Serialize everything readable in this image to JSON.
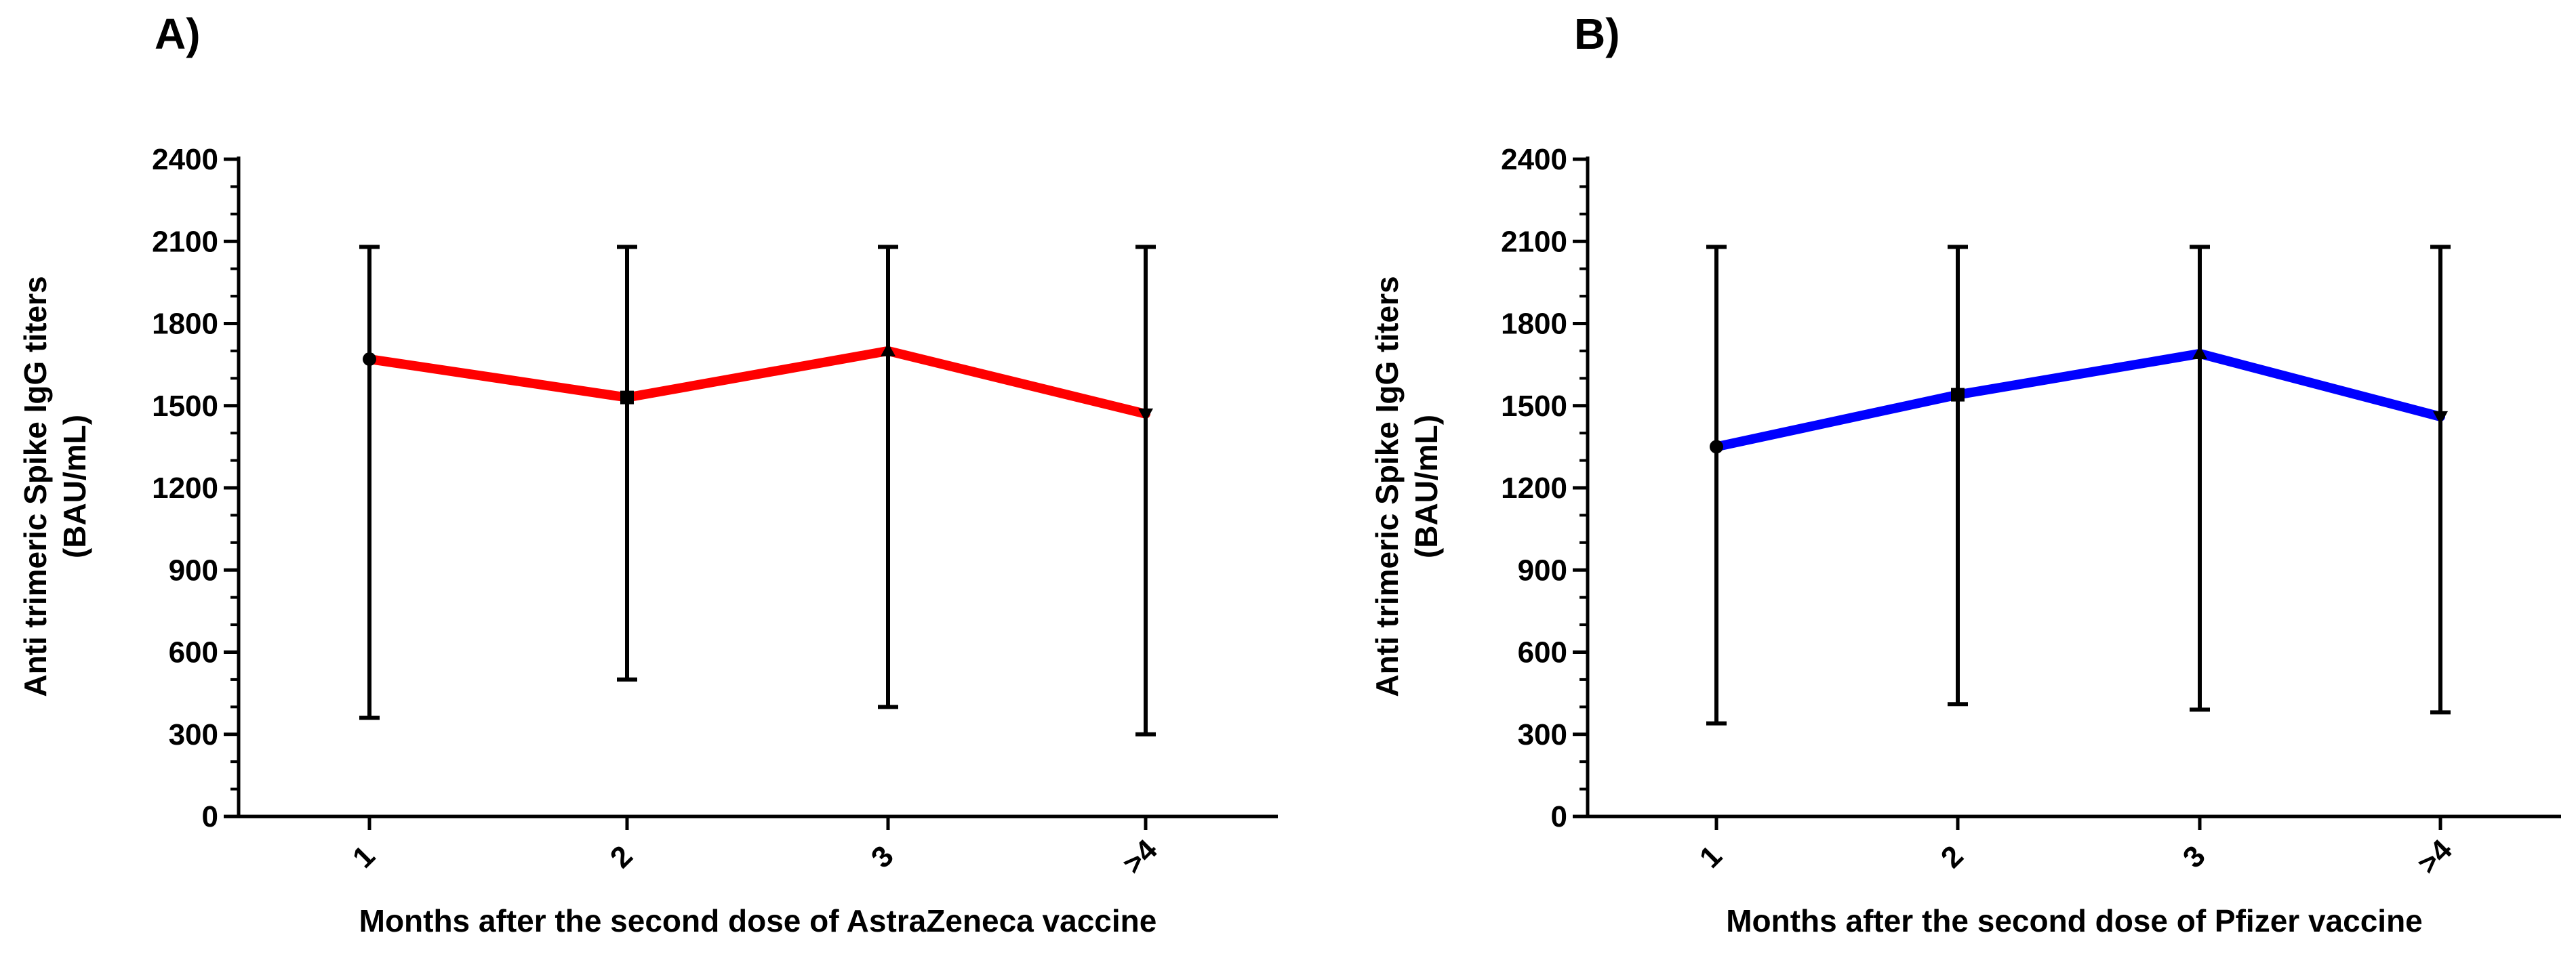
{
  "chart_data": [
    {
      "panel": "A)",
      "type": "line",
      "title": "",
      "xlabel": "Months after the second dose of AstraZeneca vaccine",
      "ylabel_line1": "Anti trimeric Spike IgG titers",
      "ylabel_line2": "(BAU/mL)",
      "categories": [
        "1",
        "2",
        "3",
        ">4"
      ],
      "yticks": [
        0,
        300,
        600,
        900,
        1200,
        1500,
        1800,
        2100,
        2400
      ],
      "ylim": [
        0,
        2400
      ],
      "grid": false,
      "color": "#ff0000",
      "markers": [
        "circle",
        "square",
        "triangle-up",
        "triangle-down"
      ],
      "series": [
        {
          "name": "AstraZeneca",
          "values": [
            1670,
            1530,
            1700,
            1470
          ],
          "err_low": [
            360,
            500,
            400,
            300
          ],
          "err_high": [
            2080,
            2080,
            2080,
            2080
          ]
        }
      ]
    },
    {
      "panel": "B)",
      "type": "line",
      "title": "",
      "xlabel": "Months after the second dose of Pfizer vaccine",
      "ylabel_line1": "Anti trimeric Spike IgG titers",
      "ylabel_line2": "(BAU/mL)",
      "categories": [
        "1",
        "2",
        "3",
        ">4"
      ],
      "yticks": [
        0,
        300,
        600,
        900,
        1200,
        1500,
        1800,
        2100,
        2400
      ],
      "ylim": [
        0,
        2400
      ],
      "grid": false,
      "color": "#0000ff",
      "markers": [
        "circle",
        "square",
        "triangle-up",
        "triangle-down"
      ],
      "series": [
        {
          "name": "Pfizer",
          "values": [
            1350,
            1540,
            1690,
            1460
          ],
          "err_low": [
            340,
            410,
            390,
            380
          ],
          "err_high": [
            2080,
            2080,
            2080,
            2080
          ]
        }
      ]
    }
  ]
}
